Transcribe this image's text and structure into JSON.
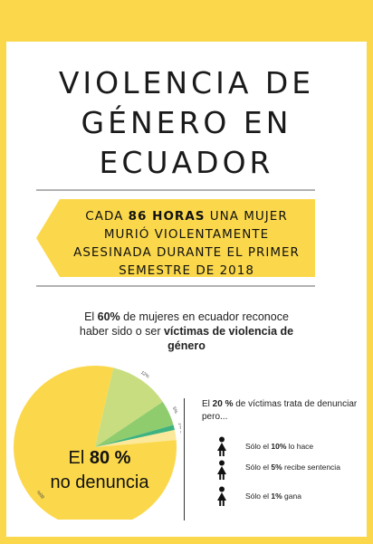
{
  "title": {
    "line1": "VIOLENCIA DE",
    "line2": "GÉNERO EN",
    "line3": "ECUADOR"
  },
  "banner": {
    "pre": "CADA ",
    "bold": "86 HORAS",
    "post": " UNA MUJER MURIÓ VIOLENTAMENTE ASESINADA DURANTE EL PRIMER SEMESTRE DE 2018"
  },
  "stat_60": {
    "pre": "El ",
    "bold1": "60%",
    "mid": " de mujeres en ecuador reconoce haber sido o ser ",
    "bold2": "víctimas de violencia de género"
  },
  "pie": {
    "label_pre": "El ",
    "label_bold": "80 %",
    "label_post": "no denuncia",
    "slice_labels": [
      "80%",
      "12%",
      "5%",
      "1%",
      "2%"
    ],
    "slice_values": [
      80,
      12,
      5,
      1,
      2
    ]
  },
  "right": {
    "intro_pre": "El ",
    "intro_bold": "20 %",
    "intro_post": " de víctimas trata de denunciar pero...",
    "items": [
      {
        "pre": "Sólo el ",
        "bold": "10%",
        "post": " lo hace"
      },
      {
        "pre": "Sólo el ",
        "bold": "5%",
        "post": " recibe sentencia"
      },
      {
        "pre": "Sólo el ",
        "bold": "1%",
        "post": " gana"
      }
    ]
  },
  "colors": {
    "yellow": "#fbd84b",
    "light_yellow": "#fce89a",
    "green_light": "#c8dd7f",
    "green": "#8fcc6e",
    "teal": "#3fb37f",
    "dark": "#1a1a1a"
  }
}
